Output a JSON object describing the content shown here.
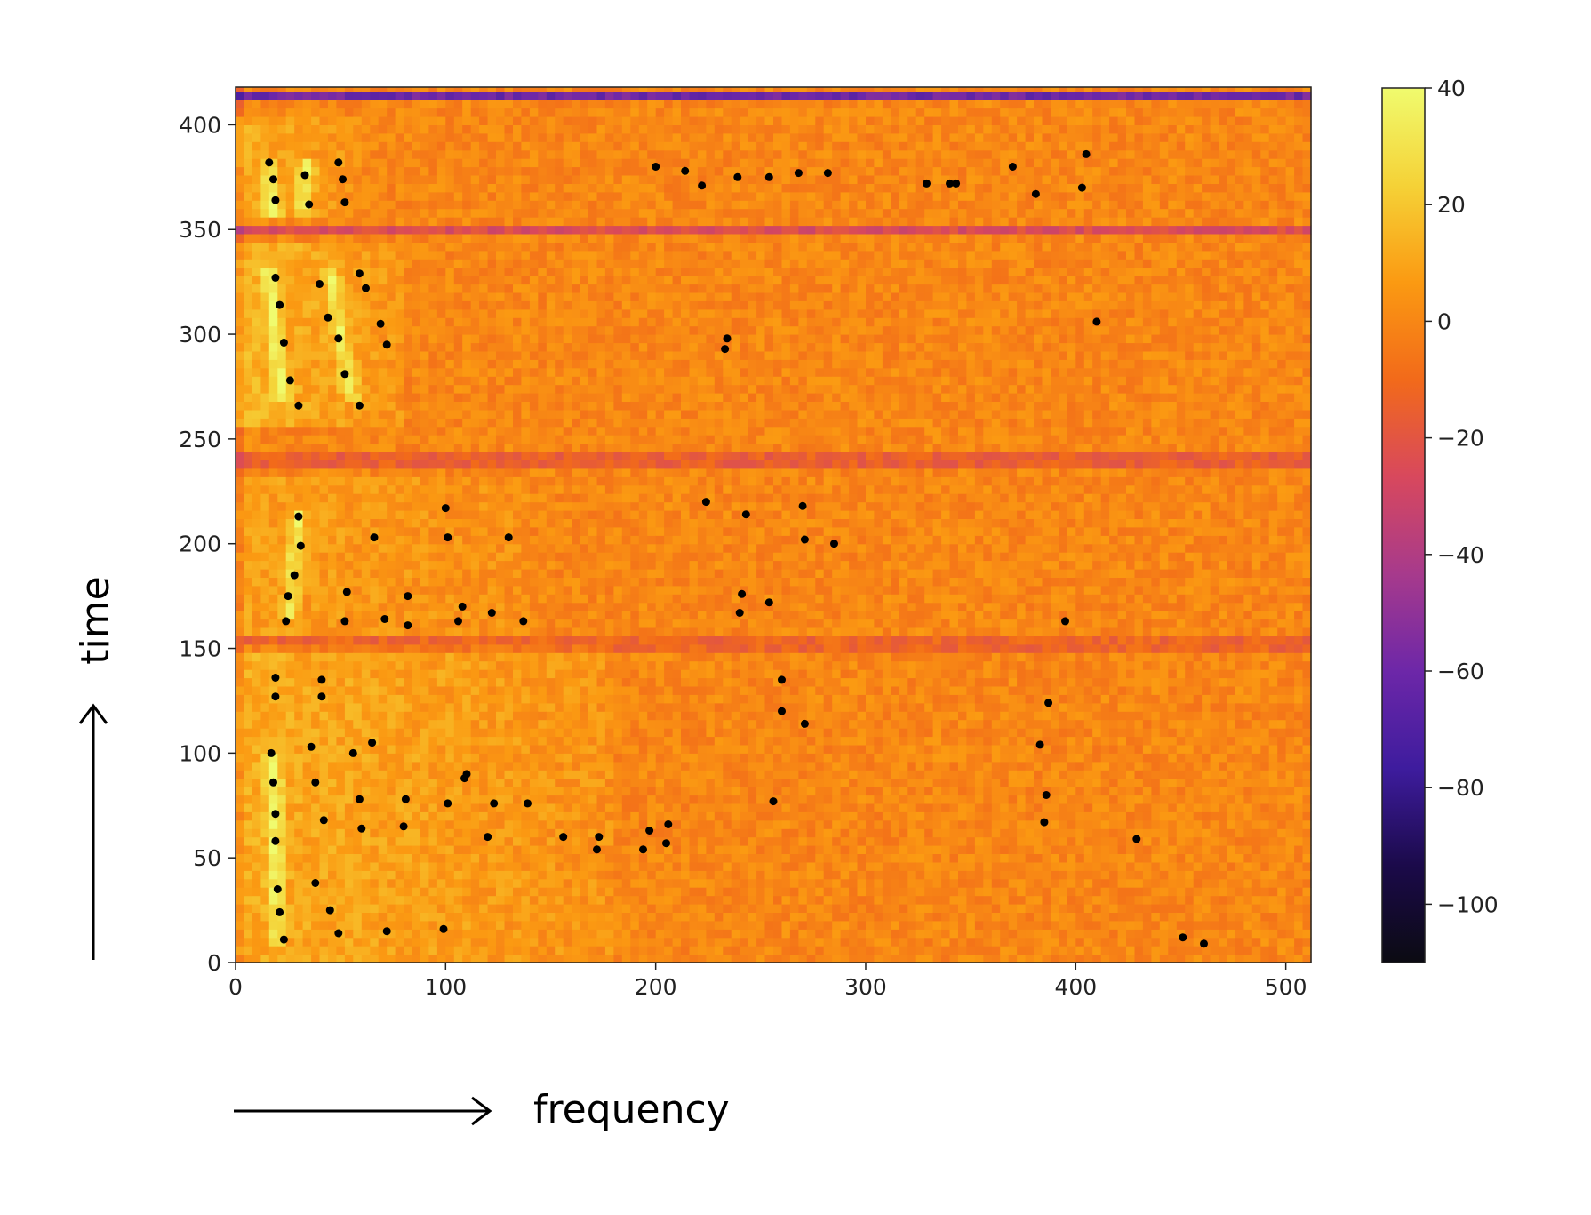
{
  "chart_data": {
    "type": "heatmap",
    "title": "",
    "xlabel": "frequency",
    "ylabel": "time",
    "xlim": [
      0,
      512
    ],
    "ylim": [
      0,
      418
    ],
    "grid": false,
    "xticks": [
      0,
      100,
      200,
      300,
      400,
      500
    ],
    "yticks": [
      0,
      50,
      100,
      150,
      200,
      250,
      300,
      350,
      400
    ],
    "colorbar": {
      "range": [
        -110,
        40
      ],
      "ticks": [
        40,
        20,
        0,
        -20,
        -40,
        -60,
        -80,
        -100
      ],
      "tick_labels": [
        "40",
        "20",
        "0",
        "−20",
        "−40",
        "−60",
        "−80",
        "−100"
      ],
      "colormap": "inferno-like",
      "stops": [
        "#0b0b12",
        "#1b0a4a",
        "#3e1c9e",
        "#6d27a8",
        "#a73a8c",
        "#d8485d",
        "#f26a1a",
        "#fb9a12",
        "#f5d237",
        "#f0fb6e"
      ]
    },
    "background_level": 0,
    "row_structure": [
      {
        "t_start": 0,
        "t_end": 150,
        "freq_extent": 180,
        "level": 12
      },
      {
        "t_start": 155,
        "t_end": 232,
        "freq_extent": 140,
        "level": 8
      },
      {
        "t_start": 255,
        "t_end": 345,
        "freq_extent": 80,
        "level": 15
      },
      {
        "t_start": 355,
        "t_end": 402,
        "freq_extent": 60,
        "level": 12
      }
    ],
    "dark_bands": [
      {
        "t": 152,
        "level": -25
      },
      {
        "t": 240,
        "level": -30
      },
      {
        "t": 350,
        "level": -25
      },
      {
        "t": 414,
        "level": -60
      }
    ],
    "bright_ridges": [
      {
        "f0": 22,
        "t0": 270,
        "f1": 16,
        "t1": 330
      },
      {
        "f0": 55,
        "t0": 270,
        "f1": 45,
        "t1": 330
      },
      {
        "f0": 20,
        "t0": 10,
        "f1": 18,
        "t1": 100
      },
      {
        "f0": 26,
        "t0": 165,
        "f1": 30,
        "t1": 215
      },
      {
        "f0": 18,
        "t0": 355,
        "f1": 16,
        "t1": 385
      },
      {
        "f0": 32,
        "t0": 355,
        "f1": 34,
        "t1": 385
      }
    ],
    "peaks": [
      [
        16,
        382
      ],
      [
        18,
        374
      ],
      [
        19,
        364
      ],
      [
        33,
        376
      ],
      [
        35,
        362
      ],
      [
        49,
        382
      ],
      [
        51,
        374
      ],
      [
        52,
        363
      ],
      [
        200,
        380
      ],
      [
        214,
        378
      ],
      [
        222,
        371
      ],
      [
        239,
        375
      ],
      [
        254,
        375
      ],
      [
        268,
        377
      ],
      [
        282,
        377
      ],
      [
        329,
        372
      ],
      [
        340,
        372
      ],
      [
        343,
        372
      ],
      [
        370,
        380
      ],
      [
        381,
        367
      ],
      [
        403,
        370
      ],
      [
        405,
        386
      ],
      [
        19,
        327
      ],
      [
        21,
        314
      ],
      [
        23,
        296
      ],
      [
        26,
        278
      ],
      [
        30,
        266
      ],
      [
        40,
        324
      ],
      [
        44,
        308
      ],
      [
        49,
        298
      ],
      [
        52,
        281
      ],
      [
        59,
        329
      ],
      [
        62,
        322
      ],
      [
        69,
        305
      ],
      [
        72,
        295
      ],
      [
        59,
        266
      ],
      [
        233,
        293
      ],
      [
        234,
        298
      ],
      [
        410,
        306
      ],
      [
        30,
        213
      ],
      [
        31,
        199
      ],
      [
        28,
        185
      ],
      [
        25,
        175
      ],
      [
        24,
        163
      ],
      [
        66,
        203
      ],
      [
        100,
        217
      ],
      [
        101,
        203
      ],
      [
        130,
        203
      ],
      [
        224,
        220
      ],
      [
        243,
        214
      ],
      [
        270,
        218
      ],
      [
        271,
        202
      ],
      [
        285,
        200
      ],
      [
        53,
        177
      ],
      [
        52,
        163
      ],
      [
        71,
        164
      ],
      [
        82,
        175
      ],
      [
        82,
        161
      ],
      [
        108,
        170
      ],
      [
        106,
        163
      ],
      [
        122,
        167
      ],
      [
        137,
        163
      ],
      [
        240,
        167
      ],
      [
        241,
        176
      ],
      [
        254,
        172
      ],
      [
        395,
        163
      ],
      [
        19,
        136
      ],
      [
        19,
        127
      ],
      [
        41,
        135
      ],
      [
        41,
        127
      ],
      [
        36,
        103
      ],
      [
        56,
        100
      ],
      [
        65,
        105
      ],
      [
        260,
        135
      ],
      [
        260,
        120
      ],
      [
        271,
        114
      ],
      [
        387,
        124
      ],
      [
        383,
        104
      ],
      [
        17,
        100
      ],
      [
        18,
        86
      ],
      [
        19,
        71
      ],
      [
        19,
        58
      ],
      [
        38,
        86
      ],
      [
        42,
        68
      ],
      [
        59,
        78
      ],
      [
        60,
        64
      ],
      [
        81,
        78
      ],
      [
        80,
        65
      ],
      [
        110,
        90
      ],
      [
        109,
        88
      ],
      [
        101,
        76
      ],
      [
        123,
        76
      ],
      [
        139,
        76
      ],
      [
        120,
        60
      ],
      [
        156,
        60
      ],
      [
        173,
        60
      ],
      [
        172,
        54
      ],
      [
        194,
        54
      ],
      [
        197,
        63
      ],
      [
        205,
        57
      ],
      [
        206,
        66
      ],
      [
        256,
        77
      ],
      [
        386,
        80
      ],
      [
        385,
        67
      ],
      [
        429,
        59
      ],
      [
        20,
        35
      ],
      [
        21,
        24
      ],
      [
        23,
        11
      ],
      [
        38,
        38
      ],
      [
        45,
        25
      ],
      [
        49,
        14
      ],
      [
        72,
        15
      ],
      [
        99,
        16
      ],
      [
        451,
        12
      ],
      [
        461,
        9
      ]
    ]
  }
}
